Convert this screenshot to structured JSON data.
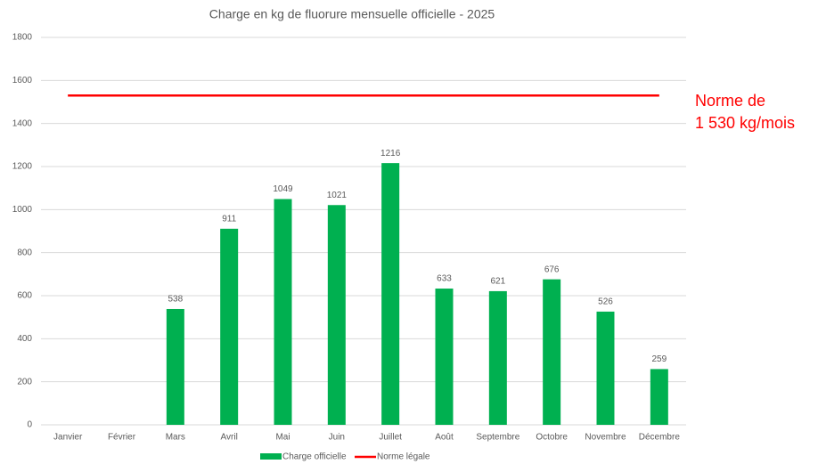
{
  "chart_data": {
    "type": "bar",
    "title": "Charge en kg de fluorure mensuelle officielle - 2025",
    "categories": [
      "Janvier",
      "Février",
      "Mars",
      "Avril",
      "Mai",
      "Juin",
      "Juillet",
      "Août",
      "Septembre",
      "Octobre",
      "Novembre",
      "Décembre"
    ],
    "series": [
      {
        "name": "Charge officielle",
        "color": "#00b050",
        "values": [
          null,
          null,
          538,
          911,
          1049,
          1021,
          1216,
          633,
          621,
          676,
          526,
          259
        ]
      },
      {
        "name": "Norme légale",
        "type": "line",
        "color": "#ff0000",
        "values": [
          1530,
          1530,
          1530,
          1530,
          1530,
          1530,
          1530,
          1530,
          1530,
          1530,
          1530,
          1530
        ]
      }
    ],
    "ylim": [
      0,
      1800
    ],
    "yticks": [
      0,
      200,
      400,
      600,
      800,
      1000,
      1200,
      1400,
      1600,
      1800
    ],
    "grid": true,
    "legend": "bottom",
    "annotation": {
      "lines": [
        "Norme de",
        "1 530 kg/mois"
      ],
      "color": "#ff0000"
    }
  }
}
